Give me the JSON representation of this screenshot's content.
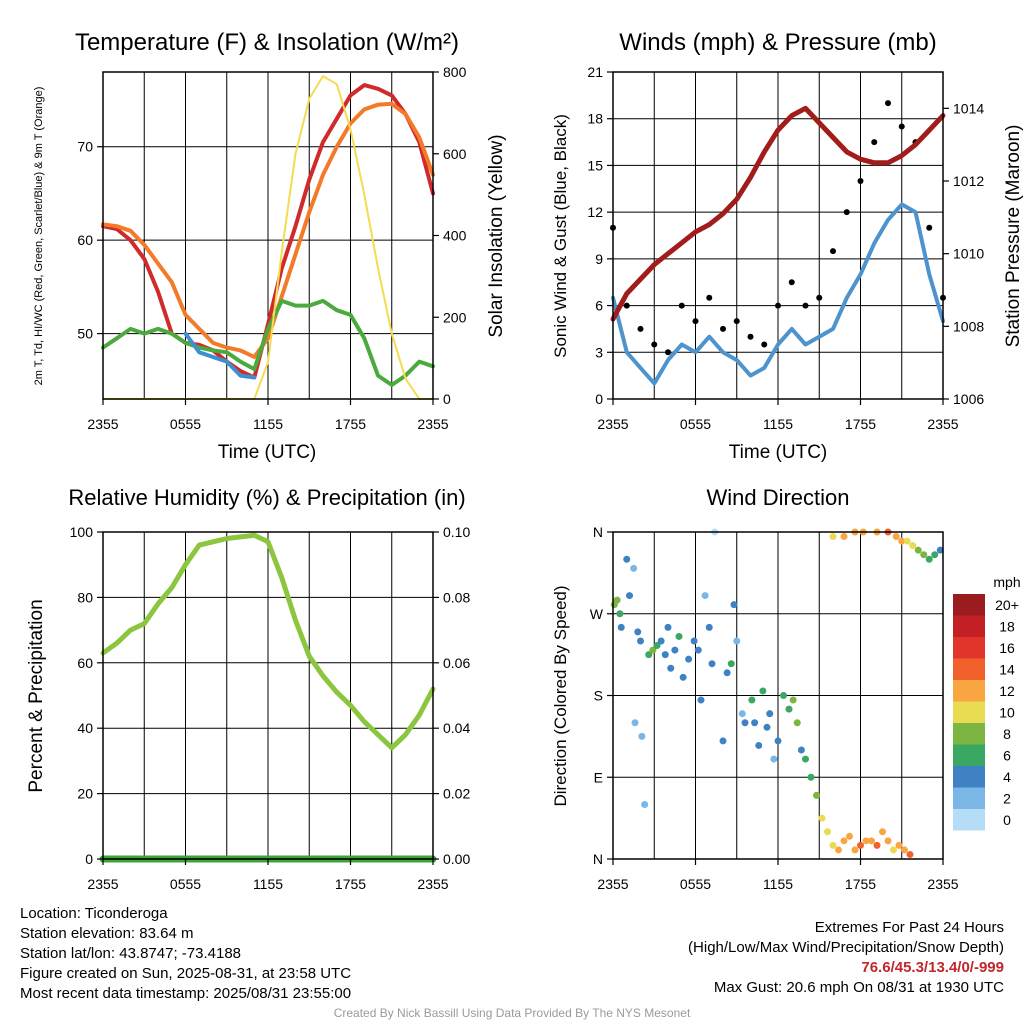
{
  "time_ticks": [
    "2355",
    "0555",
    "1155",
    "1755",
    "2355"
  ],
  "charts": {
    "temperature": {
      "type": "line",
      "title": "Temperature (F) & Insolation (W/m²)",
      "xlabel": "Time (UTC)",
      "ylabel_left": "2m T, Td, HI/WC (Red, Green, Scarlet/Blue) & 9m T (Orange)",
      "ylabel_right": "Solar Insolation (Yellow)",
      "ylim_left": [
        43,
        78
      ],
      "ylim_right": [
        0,
        800
      ],
      "yticks_left": [
        "50",
        "60",
        "70"
      ],
      "yticks_right": [
        "0",
        "200",
        "400",
        "600",
        "800"
      ],
      "x_hours": [
        0,
        1,
        2,
        3,
        4,
        5,
        6,
        7,
        8,
        9,
        10,
        11,
        12,
        13,
        14,
        15,
        16,
        17,
        18,
        19,
        20,
        21,
        22,
        23,
        24
      ],
      "series": [
        {
          "key": "t2m",
          "color": "#d12a2a",
          "values": [
            61.5,
            61.2,
            60.0,
            58.0,
            54.5,
            50.0,
            49.0,
            48.8,
            48.2,
            47.0,
            46.0,
            45.3,
            51.0,
            57.0,
            61.5,
            66.5,
            70.5,
            73.0,
            75.5,
            76.6,
            76.2,
            75.5,
            73.5,
            70.5,
            65.0
          ]
        },
        {
          "key": "t9m",
          "color": "#f37a28",
          "values": [
            61.7,
            61.5,
            61.0,
            59.5,
            57.5,
            55.5,
            52.0,
            50.5,
            49.0,
            48.5,
            48.2,
            47.5,
            49.5,
            54.0,
            58.5,
            63.0,
            67.0,
            70.0,
            72.5,
            74.0,
            74.5,
            74.6,
            73.5,
            71.0,
            67.0
          ]
        },
        {
          "key": "td",
          "color": "#4aaa3d",
          "values": [
            48.5,
            49.5,
            50.5,
            50.0,
            50.5,
            50.0,
            49.0,
            48.5,
            48.2,
            48.0,
            47.0,
            46.2,
            50.5,
            53.5,
            53.0,
            53.0,
            53.5,
            52.5,
            52.0,
            49.5,
            45.5,
            44.5,
            45.5,
            47.0,
            46.5
          ]
        },
        {
          "key": "wc",
          "color": "#3d8fcf",
          "values": [
            null,
            null,
            null,
            null,
            null,
            null,
            50.0,
            48.0,
            47.5,
            47.0,
            45.5,
            45.3,
            null,
            null,
            null,
            null,
            null,
            null,
            null,
            null,
            null,
            null,
            null,
            null,
            null
          ]
        },
        {
          "key": "insolation",
          "axis": "right",
          "color": "#f4dc50",
          "values": [
            0,
            0,
            0,
            0,
            0,
            0,
            0,
            0,
            0,
            0,
            0,
            0,
            90,
            360,
            600,
            735,
            790,
            770,
            660,
            500,
            320,
            160,
            50,
            0,
            0
          ]
        }
      ]
    },
    "winds": {
      "type": "line",
      "title": "Winds (mph) & Pressure (mb)",
      "xlabel": "Time (UTC)",
      "ylabel_left": "Sonic Wind & Gust (Blue, Black)",
      "ylabel_right": "Station Pressure (Maroon)",
      "ylim_left": [
        0,
        21
      ],
      "ylim_right": [
        1006,
        1015
      ],
      "yticks_left": [
        "0",
        "3",
        "6",
        "9",
        "12",
        "15",
        "18",
        "21"
      ],
      "yticks_right": [
        "1006",
        "1008",
        "1010",
        "1012",
        "1014"
      ],
      "x_hours": [
        0,
        1,
        2,
        3,
        4,
        5,
        6,
        7,
        8,
        9,
        10,
        11,
        12,
        13,
        14,
        15,
        16,
        17,
        18,
        19,
        20,
        21,
        22,
        23,
        24
      ],
      "series": [
        {
          "key": "wind",
          "color": "#4d93cd",
          "values": [
            6.5,
            3.0,
            2.0,
            1.0,
            2.5,
            3.5,
            3.0,
            4.0,
            3.0,
            2.5,
            1.5,
            2.0,
            3.5,
            4.5,
            3.5,
            4.0,
            4.5,
            6.5,
            8.0,
            10.0,
            11.5,
            12.5,
            12.0,
            8.0,
            5.0
          ]
        },
        {
          "key": "gust",
          "color": "#000000",
          "values": [
            11.0,
            6.0,
            4.5,
            3.5,
            3.0,
            6.0,
            5.0,
            6.5,
            4.5,
            5.0,
            4.0,
            3.5,
            6.0,
            7.5,
            6.0,
            6.5,
            9.5,
            12.0,
            14.0,
            16.5,
            19.0,
            17.5,
            16.5,
            11.0,
            6.5
          ]
        },
        {
          "key": "pressure",
          "axis": "right",
          "color": "#a31c1c",
          "values": [
            1008.2,
            1008.9,
            1009.3,
            1009.7,
            1010.0,
            1010.3,
            1010.6,
            1010.8,
            1011.1,
            1011.5,
            1012.1,
            1012.8,
            1013.4,
            1013.8,
            1014.0,
            1013.6,
            1013.2,
            1012.8,
            1012.6,
            1012.5,
            1012.5,
            1012.7,
            1013.0,
            1013.4,
            1013.8
          ]
        }
      ]
    },
    "humidity": {
      "type": "line",
      "title": "Relative Humidity (%) & Precipitation (in)",
      "xlabel": "",
      "ylabel_left": "Percent & Precipitation",
      "ylim_left": [
        0,
        100
      ],
      "ylim_right": [
        0,
        0.1
      ],
      "yticks_left": [
        "0",
        "20",
        "40",
        "60",
        "80",
        "100"
      ],
      "yticks_right": [
        "0.00",
        "0.02",
        "0.04",
        "0.06",
        "0.08",
        "0.10"
      ],
      "x_hours": [
        0,
        1,
        2,
        3,
        4,
        5,
        6,
        7,
        8,
        9,
        10,
        11,
        12,
        13,
        14,
        15,
        16,
        17,
        18,
        19,
        20,
        21,
        22,
        23,
        24
      ],
      "series": [
        {
          "key": "rh",
          "color": "#8cc63f",
          "values": [
            63,
            66,
            70,
            72,
            78,
            83,
            90,
            96,
            97,
            98,
            98.5,
            99,
            97,
            86,
            73,
            62,
            56,
            51,
            47,
            42,
            38,
            34,
            38,
            44,
            52
          ]
        },
        {
          "key": "precip",
          "axis": "right",
          "color": "#3ea33a",
          "values": [
            0,
            0,
            0,
            0,
            0,
            0,
            0,
            0,
            0,
            0,
            0,
            0,
            0,
            0,
            0,
            0,
            0,
            0,
            0,
            0,
            0,
            0,
            0,
            0,
            0
          ]
        }
      ]
    },
    "direction": {
      "type": "scatter",
      "title": "Wind Direction",
      "ylabel_left": "Direction (Colored By Speed)",
      "yticks_left": [
        "N",
        "E",
        "S",
        "W",
        "N"
      ],
      "ylim_left": [
        0,
        360
      ],
      "legend_title": "mph",
      "legend_labels": [
        "20+",
        "18",
        "16",
        "14",
        "12",
        "10",
        "8",
        "6",
        "4",
        "2",
        "0"
      ],
      "legend_colors": [
        "#9b1c1f",
        "#c32025",
        "#e1352c",
        "#f2612b",
        "#f8a542",
        "#e9dc52",
        "#7db543",
        "#3aa763",
        "#3e82c3",
        "#7ab6e6",
        "#b6ddf7"
      ],
      "points": [
        [
          0.1,
          280,
          7
        ],
        [
          0.3,
          285,
          8
        ],
        [
          0.5,
          270,
          5
        ],
        [
          0.6,
          255,
          4
        ],
        [
          1.0,
          330,
          3
        ],
        [
          1.2,
          290,
          4
        ],
        [
          1.5,
          320,
          2
        ],
        [
          1.6,
          150,
          2
        ],
        [
          1.8,
          250,
          4
        ],
        [
          2.0,
          240,
          3
        ],
        [
          2.1,
          135,
          2
        ],
        [
          2.3,
          60,
          2
        ],
        [
          2.6,
          225,
          5
        ],
        [
          2.9,
          230,
          7
        ],
        [
          3.2,
          235,
          6
        ],
        [
          3.5,
          240,
          4
        ],
        [
          3.8,
          225,
          3
        ],
        [
          4.0,
          255,
          4
        ],
        [
          4.2,
          210,
          3
        ],
        [
          4.5,
          230,
          4
        ],
        [
          4.8,
          245,
          5
        ],
        [
          5.1,
          200,
          3
        ],
        [
          5.5,
          220,
          4
        ],
        [
          5.9,
          240,
          3
        ],
        [
          6.2,
          230,
          4
        ],
        [
          6.4,
          175,
          3
        ],
        [
          6.7,
          290,
          2
        ],
        [
          7.0,
          255,
          3
        ],
        [
          7.2,
          215,
          4
        ],
        [
          7.4,
          360,
          0
        ],
        [
          8.0,
          130,
          4
        ],
        [
          8.3,
          205,
          3
        ],
        [
          8.6,
          215,
          5
        ],
        [
          8.8,
          280,
          3
        ],
        [
          9.0,
          240,
          2
        ],
        [
          9.4,
          160,
          2
        ],
        [
          9.6,
          150,
          4
        ],
        [
          10.1,
          175,
          5
        ],
        [
          10.3,
          150,
          3
        ],
        [
          10.6,
          125,
          4
        ],
        [
          10.9,
          185,
          6
        ],
        [
          11.2,
          145,
          4
        ],
        [
          11.4,
          160,
          3
        ],
        [
          11.7,
          110,
          2
        ],
        [
          12.0,
          130,
          3
        ],
        [
          12.4,
          180,
          5
        ],
        [
          12.8,
          165,
          6
        ],
        [
          13.1,
          175,
          7
        ],
        [
          13.4,
          150,
          8
        ],
        [
          13.7,
          120,
          4
        ],
        [
          14.0,
          110,
          5
        ],
        [
          14.4,
          90,
          6
        ],
        [
          14.8,
          70,
          8
        ],
        [
          15.2,
          45,
          9
        ],
        [
          15.6,
          30,
          10
        ],
        [
          16.0,
          15,
          10
        ],
        [
          16.4,
          10,
          12
        ],
        [
          16.8,
          20,
          12
        ],
        [
          17.2,
          25,
          11
        ],
        [
          17.6,
          10,
          12
        ],
        [
          18.0,
          15,
          13
        ],
        [
          18.4,
          20,
          12
        ],
        [
          18.8,
          20,
          11
        ],
        [
          19.2,
          15,
          13
        ],
        [
          19.6,
          30,
          12
        ],
        [
          20.0,
          20,
          11
        ],
        [
          20.4,
          10,
          10
        ],
        [
          20.8,
          15,
          12
        ],
        [
          21.2,
          10,
          12
        ],
        [
          21.6,
          5,
          13
        ],
        [
          16.0,
          355,
          10
        ],
        [
          16.8,
          355,
          12
        ],
        [
          17.6,
          360,
          11
        ],
        [
          18.2,
          360,
          12
        ],
        [
          19.2,
          360,
          11
        ],
        [
          20.0,
          360,
          13
        ],
        [
          20.6,
          355,
          12
        ],
        [
          21.0,
          350,
          11
        ],
        [
          21.4,
          350,
          10
        ],
        [
          21.8,
          345,
          10
        ],
        [
          22.2,
          340,
          8
        ],
        [
          22.6,
          335,
          8
        ],
        [
          23.0,
          330,
          6
        ],
        [
          23.4,
          335,
          5
        ],
        [
          23.8,
          340,
          4
        ]
      ]
    }
  },
  "info": {
    "location": "Location: Ticonderoga",
    "elevation": "Station elevation: 83.64 m",
    "latlon": "Station lat/lon: 43.8747; -73.4188",
    "created": "Figure created on Sun, 2025-08-31, at 23:58 UTC",
    "recent": "Most recent data timestamp: 2025/08/31 23:55:00"
  },
  "extremes": {
    "title": "Extremes For Past 24 Hours",
    "subtitle": "(High/Low/Max Wind/Precipitation/Snow Depth)",
    "values": "76.6/45.3/13.4/0/-999",
    "gust": "Max Gust: 20.6 mph On 08/31 at 1930 UTC"
  },
  "credit": "Created By Nick Bassill Using Data Provided By The NYS Mesonet"
}
